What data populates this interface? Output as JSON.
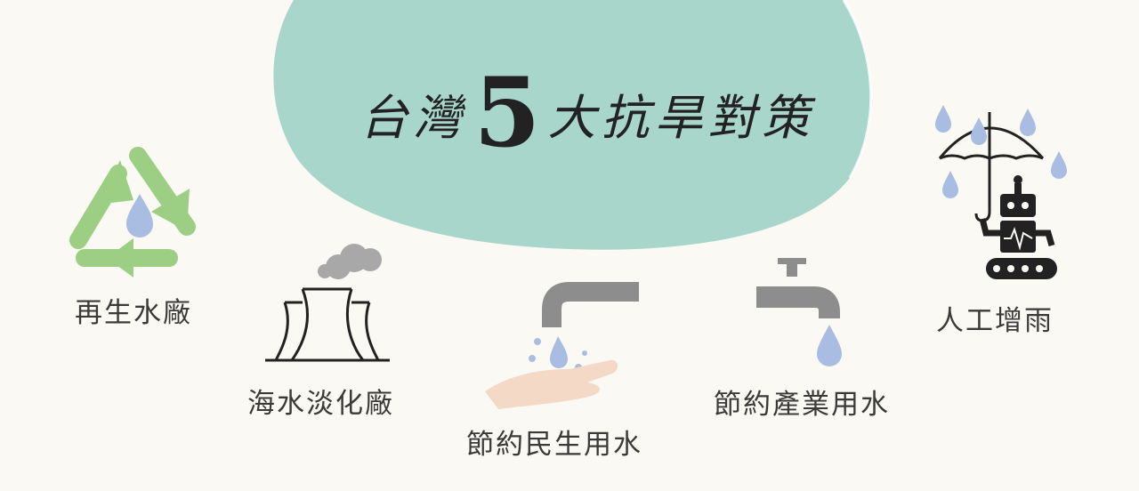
{
  "title": {
    "prefix": "台灣",
    "number": "5",
    "suffix": "大抗旱對策"
  },
  "strategies": [
    {
      "label": "再生水廠",
      "icon": "recycle-water-icon"
    },
    {
      "label": "海水淡化廠",
      "icon": "cooling-tower-icon"
    },
    {
      "label": "節約民生用水",
      "icon": "faucet-hand-icon"
    },
    {
      "label": "節約產業用水",
      "icon": "industrial-faucet-icon"
    },
    {
      "label": "人工增雨",
      "icon": "robot-umbrella-rain-icon"
    }
  ],
  "colors": {
    "background": "#fbf9f3",
    "blob": "#a8d6cb",
    "recycle_green": "#9ccf84",
    "water_drop": "#a9bde3",
    "pipe_gray": "#8d8d8d",
    "hand": "#f4d9c6",
    "text": "#3a3a3a"
  }
}
